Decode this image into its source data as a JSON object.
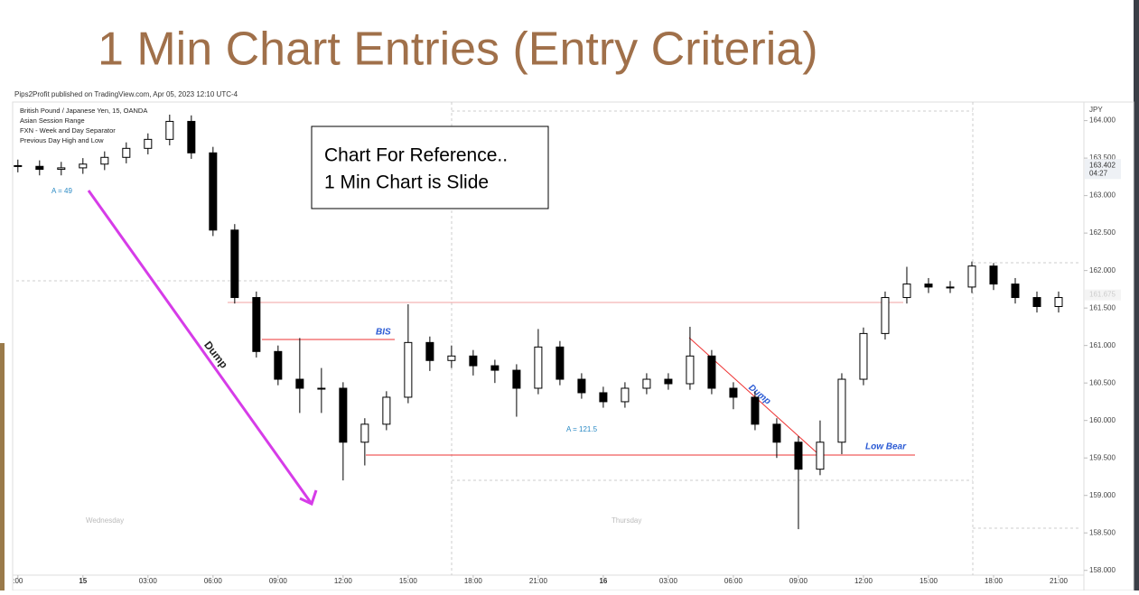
{
  "slide_title": "1 Min Chart Entries (Entry Criteria)",
  "publish_note": "Pips2Profit published on TradingView.com, Apr 05, 2023 12:10 UTC-4",
  "note_box": [
    "Chart For Reference..",
    "1 Min Chart is Slide"
  ],
  "chart_data": {
    "type": "candlestick",
    "info_lines": [
      "British Pound / Japanese Yen, 15, OANDA",
      "Asian Session Range",
      "FXN - Week and Day Separator",
      "Previous Day High and Low"
    ],
    "currency": "JPY",
    "last_price": {
      "value": 163.402,
      "label": "163.402"
    },
    "countdown": "04:27",
    "faint_price": {
      "value": 161.675,
      "label": "161.675"
    },
    "day_labels": [
      "Wednesday",
      "Thursday"
    ],
    "annotations": [
      "A = 49",
      "Dump",
      "BIS",
      "A = 121.5",
      "Dump",
      "Low Bear"
    ],
    "x": [
      -3,
      -2,
      -1,
      0,
      1,
      2,
      3,
      4,
      5,
      6,
      7,
      8,
      9,
      10,
      11,
      12,
      13,
      14,
      15,
      16,
      17,
      18,
      19,
      20,
      21,
      22,
      23,
      24,
      25,
      26,
      27,
      28,
      29,
      30,
      31,
      32,
      33,
      34,
      35,
      36,
      37,
      38,
      39,
      40,
      41,
      42,
      43,
      44,
      45
    ],
    "open": [
      163.4,
      163.39,
      163.35,
      163.37,
      163.42,
      163.51,
      163.63,
      163.75,
      163.99,
      163.57,
      162.54,
      161.64,
      160.92,
      160.55,
      160.43,
      160.43,
      159.71,
      159.95,
      160.31,
      161.04,
      160.8,
      160.86,
      160.73,
      160.67,
      160.43,
      160.98,
      160.55,
      160.37,
      160.25,
      160.43,
      160.55,
      160.49,
      160.86,
      160.43,
      160.31,
      159.95,
      159.71,
      159.35,
      159.71,
      160.55,
      161.16,
      161.64,
      161.82,
      161.78,
      161.78,
      162.06,
      161.82,
      161.64,
      161.52
    ],
    "high": [
      163.48,
      163.47,
      163.45,
      163.5,
      163.59,
      163.71,
      163.83,
      164.08,
      164.07,
      163.65,
      162.62,
      161.72,
      161.0,
      161.1,
      160.7,
      160.51,
      160.03,
      160.39,
      161.55,
      161.12,
      161.0,
      160.94,
      160.81,
      160.75,
      161.22,
      161.06,
      160.63,
      160.45,
      160.51,
      160.63,
      160.63,
      161.25,
      160.94,
      160.51,
      160.39,
      160.03,
      159.79,
      160.0,
      160.63,
      161.24,
      161.72,
      162.05,
      161.9,
      161.86,
      162.12,
      162.1,
      161.9,
      161.72,
      161.72
    ],
    "low": [
      163.31,
      163.27,
      163.27,
      163.29,
      163.34,
      163.43,
      163.55,
      163.67,
      163.49,
      162.46,
      161.56,
      160.84,
      160.47,
      160.1,
      160.1,
      159.2,
      159.4,
      159.87,
      160.23,
      160.66,
      160.7,
      160.6,
      160.5,
      160.05,
      160.35,
      160.47,
      160.29,
      160.17,
      160.17,
      160.35,
      160.41,
      160.41,
      160.35,
      160.15,
      159.87,
      159.5,
      158.55,
      159.27,
      159.55,
      160.47,
      161.08,
      161.56,
      161.7,
      161.7,
      161.7,
      161.74,
      161.56,
      161.44,
      161.44
    ],
    "close": [
      163.39,
      163.35,
      163.37,
      163.42,
      163.51,
      163.63,
      163.75,
      163.99,
      163.57,
      162.54,
      161.64,
      160.92,
      160.55,
      160.43,
      160.43,
      159.71,
      159.95,
      160.31,
      161.04,
      160.8,
      160.86,
      160.73,
      160.67,
      160.43,
      160.98,
      160.55,
      160.37,
      160.25,
      160.43,
      160.55,
      160.49,
      160.86,
      160.43,
      160.31,
      159.95,
      159.71,
      159.35,
      159.71,
      160.55,
      161.16,
      161.64,
      161.82,
      161.78,
      161.78,
      162.06,
      161.82,
      161.64,
      161.52,
      161.64
    ],
    "xlim": [
      -3.2,
      46
    ],
    "xticks": [
      {
        "value": -3,
        "label": ":00"
      },
      {
        "value": 0,
        "label": "15"
      },
      {
        "value": 3,
        "label": "03:00"
      },
      {
        "value": 6,
        "label": "06:00"
      },
      {
        "value": 9,
        "label": "09:00"
      },
      {
        "value": 12,
        "label": "12:00"
      },
      {
        "value": 15,
        "label": "15:00"
      },
      {
        "value": 18,
        "label": "18:00"
      },
      {
        "value": 21,
        "label": "21:00"
      },
      {
        "value": 24,
        "label": "16"
      },
      {
        "value": 27,
        "label": "03:00"
      },
      {
        "value": 30,
        "label": "06:00"
      },
      {
        "value": 33,
        "label": "09:00"
      },
      {
        "value": 36,
        "label": "12:00"
      },
      {
        "value": 39,
        "label": "15:00"
      },
      {
        "value": 42,
        "label": "18:00"
      },
      {
        "value": 45,
        "label": "21:00"
      }
    ],
    "ylim": [
      157.78,
      164.2
    ],
    "yticks": [
      {
        "value": 158,
        "label": "158.000"
      },
      {
        "value": 158.5,
        "label": "158.500"
      },
      {
        "value": 159,
        "label": "159.000"
      },
      {
        "value": 159.5,
        "label": "159.500"
      },
      {
        "value": 160,
        "label": "160.000"
      },
      {
        "value": 160.5,
        "label": "160.500"
      },
      {
        "value": 161,
        "label": "161.000"
      },
      {
        "value": 161.5,
        "label": "161.500"
      },
      {
        "value": 162,
        "label": "162.000"
      },
      {
        "value": 162.5,
        "label": "162.500"
      },
      {
        "value": 163,
        "label": "163.000"
      },
      {
        "value": 163.5,
        "label": "163.500"
      },
      {
        "value": 164,
        "label": "164.000"
      }
    ],
    "up_color": "#ffffff",
    "down_color": "#000000"
  }
}
